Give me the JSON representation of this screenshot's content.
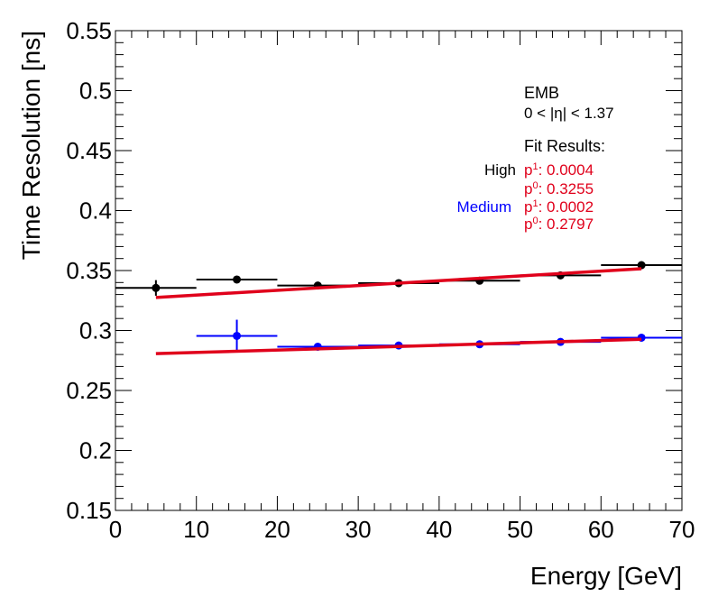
{
  "chart_data": {
    "type": "scatter",
    "xlabel": "Energy [GeV]",
    "ylabel": "Time Resolution [ns]",
    "xlim": [
      0,
      70
    ],
    "ylim": [
      0.15,
      0.55
    ],
    "xticks": [
      0,
      10,
      20,
      30,
      40,
      50,
      60,
      70
    ],
    "xtick_labels": [
      "0",
      "10",
      "20",
      "30",
      "40",
      "50",
      "60",
      "70"
    ],
    "yticks": [
      0.15,
      0.2,
      0.25,
      0.3,
      0.35,
      0.4,
      0.45,
      0.5,
      0.55
    ],
    "ytick_labels": [
      "0.15",
      "0.2",
      "0.25",
      "0.3",
      "0.35",
      "0.4",
      "0.45",
      "0.5",
      "0.55"
    ],
    "series": [
      {
        "name": "High",
        "color": "#000000",
        "points": [
          {
            "x": 5,
            "y": 0.3355,
            "xlo": 0,
            "xhi": 10,
            "yerr": 0.0065
          },
          {
            "x": 15,
            "y": 0.3425,
            "xlo": 10,
            "xhi": 20,
            "yerr": 0.0015
          },
          {
            "x": 25,
            "y": 0.3375,
            "xlo": 20,
            "xhi": 30,
            "yerr": 0.001
          },
          {
            "x": 35,
            "y": 0.3395,
            "xlo": 30,
            "xhi": 40,
            "yerr": 0.001
          },
          {
            "x": 45,
            "y": 0.3415,
            "xlo": 40,
            "xhi": 50,
            "yerr": 0.001
          },
          {
            "x": 55,
            "y": 0.346,
            "xlo": 50,
            "xhi": 60,
            "yerr": 0.001
          },
          {
            "x": 65,
            "y": 0.3545,
            "xlo": 60,
            "xhi": 70,
            "yerr": 0.0015
          }
        ],
        "fit": {
          "p0": 0.3255,
          "p1": 0.0004,
          "x_range": [
            5,
            65
          ],
          "color": "#e0001b"
        }
      },
      {
        "name": "Medium",
        "color": "#0000ff",
        "points": [
          {
            "x": 15,
            "y": 0.2955,
            "xlo": 10,
            "xhi": 20,
            "yerr": 0.0135
          },
          {
            "x": 25,
            "y": 0.2865,
            "xlo": 20,
            "xhi": 30,
            "yerr": 0.001
          },
          {
            "x": 35,
            "y": 0.2875,
            "xlo": 30,
            "xhi": 40,
            "yerr": 0.001
          },
          {
            "x": 45,
            "y": 0.2885,
            "xlo": 40,
            "xhi": 50,
            "yerr": 0.001
          },
          {
            "x": 55,
            "y": 0.2905,
            "xlo": 50,
            "xhi": 60,
            "yerr": 0.001
          },
          {
            "x": 65,
            "y": 0.294,
            "xlo": 60,
            "xhi": 70,
            "yerr": 0.001
          }
        ],
        "fit": {
          "p0": 0.2797,
          "p1": 0.0002,
          "x_range": [
            5,
            65
          ],
          "color": "#e0001b"
        }
      }
    ],
    "annotations": {
      "region": "EMB",
      "eta_range": "0 < |η| < 1.37",
      "fit_title": "Fit Results:",
      "high_label": "High",
      "medium_label": "Medium",
      "fit_lines": [
        {
          "param": "p",
          "sub": "1",
          "value": ": 0.0004"
        },
        {
          "param": "p",
          "sub": "0",
          "value": ": 0.3255"
        },
        {
          "param": "p",
          "sub": "1",
          "value": ": 0.0002"
        },
        {
          "param": "p",
          "sub": "0",
          "value": ": 0.2797"
        }
      ]
    }
  }
}
